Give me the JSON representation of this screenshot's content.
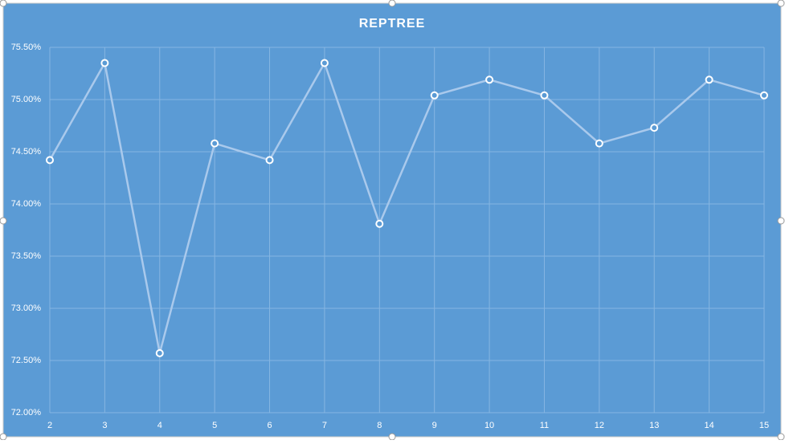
{
  "chart_data": {
    "type": "line",
    "title": "REPTREE",
    "x": [
      2,
      3,
      4,
      5,
      6,
      7,
      8,
      9,
      10,
      11,
      12,
      13,
      14,
      15
    ],
    "series": [
      {
        "color": "#a9c9ec",
        "values": [
          74.42,
          75.35,
          72.57,
          74.58,
          74.42,
          75.35,
          73.81,
          75.04,
          75.19,
          75.04,
          74.58,
          74.73,
          75.19,
          75.04
        ]
      }
    ],
    "xlim": [
      2,
      15
    ],
    "xticks": [
      2,
      3,
      4,
      5,
      6,
      7,
      8,
      9,
      10,
      11,
      12,
      13,
      14,
      15
    ],
    "ylim": [
      72,
      75.5
    ],
    "yticks": [
      {
        "value": 72,
        "label": "72.00%"
      },
      {
        "value": 72.5,
        "label": "72.50%"
      },
      {
        "value": 73,
        "label": "73.00%"
      },
      {
        "value": 73.5,
        "label": "73.50%"
      },
      {
        "value": 74,
        "label": "74.00%"
      },
      {
        "value": 74.5,
        "label": "74.50%"
      },
      {
        "value": 75,
        "label": "75.00%"
      },
      {
        "value": 75.5,
        "label": "75.50%"
      }
    ],
    "grid": true,
    "background": "#5b9bd5"
  }
}
